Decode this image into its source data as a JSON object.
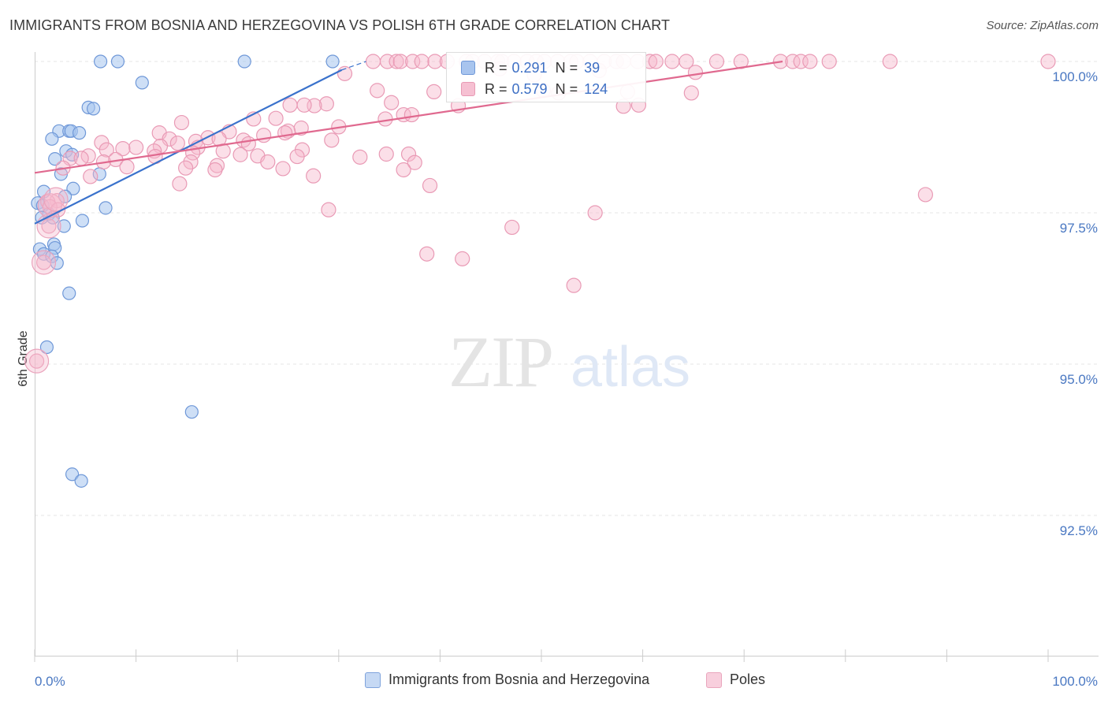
{
  "header": {
    "title": "IMMIGRANTS FROM BOSNIA AND HERZEGOVINA VS POLISH 6TH GRADE CORRELATION CHART",
    "source": "Source: ZipAtlas.com"
  },
  "watermark": {
    "zip": "ZIP",
    "atlas": "atlas"
  },
  "stats": {
    "r_label": "R =",
    "n_label": "N =",
    "rows": [
      {
        "r": "0.291",
        "n": "39",
        "color": "#a8c4ee",
        "border": "#6f98d8"
      },
      {
        "r": "0.579",
        "n": "124",
        "color": "#f6c0d2",
        "border": "#e89ab4"
      }
    ]
  },
  "legend": {
    "items": [
      {
        "label": "Immigrants from Bosnia and Herzegovina",
        "color": "#c6d9f4",
        "border": "#7fa3dc"
      },
      {
        "label": "Poles",
        "color": "#f8cfdd",
        "border": "#e9a6bd"
      }
    ]
  },
  "chart_data": {
    "type": "scatter",
    "title": "IMMIGRANTS FROM BOSNIA AND HERZEGOVINA VS POLISH 6TH GRADE CORRELATION CHART",
    "xlabel": "",
    "ylabel": "6th Grade",
    "xlim": [
      0,
      100
    ],
    "ylim": [
      90.1,
      100.3
    ],
    "x_tick_labels": [
      "0.0%",
      "100.0%"
    ],
    "y_ticks": [
      {
        "value": 100.0,
        "label": "100.0%"
      },
      {
        "value": 97.5,
        "label": "97.5%"
      },
      {
        "value": 95.0,
        "label": "95.0%"
      },
      {
        "value": 92.5,
        "label": "92.5%"
      }
    ],
    "grid": true,
    "legend_position": "bottom",
    "series": [
      {
        "name": "Immigrants from Bosnia and Herzegovina",
        "color": "#7fa8e2",
        "line_color": "#3a72cc",
        "trend": {
          "x": [
            0.0,
            30.3
          ],
          "y": [
            97.32,
            99.86
          ],
          "dash_to": [
            32.7,
            100.0
          ]
        },
        "points": [
          [
            6.5,
            100.0
          ],
          [
            8.2,
            100.0
          ],
          [
            20.7,
            100.0
          ],
          [
            29.4,
            100.0
          ],
          [
            10.6,
            99.65
          ],
          [
            5.3,
            99.24
          ],
          [
            5.8,
            99.22
          ],
          [
            2.4,
            98.85
          ],
          [
            3.4,
            98.85
          ],
          [
            3.6,
            98.85
          ],
          [
            4.4,
            98.82
          ],
          [
            1.7,
            98.72
          ],
          [
            3.1,
            98.52
          ],
          [
            2.0,
            98.39
          ],
          [
            3.7,
            98.46
          ],
          [
            2.6,
            98.14
          ],
          [
            6.4,
            98.14
          ],
          [
            3.8,
            97.9
          ],
          [
            0.9,
            97.85
          ],
          [
            3.0,
            97.77
          ],
          [
            0.3,
            97.66
          ],
          [
            0.8,
            97.62
          ],
          [
            7.0,
            97.58
          ],
          [
            1.4,
            97.48
          ],
          [
            0.7,
            97.42
          ],
          [
            1.8,
            97.42
          ],
          [
            4.7,
            97.37
          ],
          [
            2.9,
            97.28
          ],
          [
            1.9,
            96.98
          ],
          [
            0.5,
            96.9
          ],
          [
            2.0,
            96.92
          ],
          [
            0.9,
            96.82
          ],
          [
            1.7,
            96.78
          ],
          [
            2.2,
            96.67
          ],
          [
            3.4,
            96.17
          ],
          [
            1.2,
            95.28
          ],
          [
            15.5,
            94.21
          ],
          [
            3.7,
            93.18
          ],
          [
            4.6,
            93.07
          ]
        ]
      },
      {
        "name": "Poles",
        "color": "#f2a9c1",
        "line_color": "#e0698f",
        "trend": {
          "x": [
            0.0,
            73.8
          ],
          "y": [
            98.16,
            100.0
          ]
        },
        "points": [
          [
            33.4,
            100.0
          ],
          [
            34.8,
            100.0
          ],
          [
            35.7,
            100.0
          ],
          [
            36.1,
            100.0
          ],
          [
            37.3,
            100.0
          ],
          [
            38.2,
            100.0
          ],
          [
            39.5,
            100.0
          ],
          [
            40.7,
            100.0
          ],
          [
            42.6,
            100.0
          ],
          [
            43.2,
            100.0
          ],
          [
            44.4,
            100.0
          ],
          [
            45.7,
            100.0
          ],
          [
            46.1,
            100.0
          ],
          [
            47.3,
            100.0
          ],
          [
            48.6,
            100.0
          ],
          [
            49.5,
            100.0
          ],
          [
            50.3,
            100.0
          ],
          [
            51.6,
            100.0
          ],
          [
            52.9,
            100.0
          ],
          [
            53.5,
            100.0
          ],
          [
            54.8,
            100.0
          ],
          [
            56.2,
            100.0
          ],
          [
            57.4,
            100.0
          ],
          [
            58.1,
            100.0
          ],
          [
            59.5,
            100.0
          ],
          [
            60.7,
            100.0
          ],
          [
            61.3,
            100.0
          ],
          [
            62.9,
            100.0
          ],
          [
            64.3,
            100.0
          ],
          [
            67.3,
            100.0
          ],
          [
            69.7,
            100.0
          ],
          [
            73.6,
            100.0
          ],
          [
            74.8,
            100.0
          ],
          [
            75.6,
            100.0
          ],
          [
            76.5,
            100.0
          ],
          [
            78.4,
            100.0
          ],
          [
            84.4,
            100.0
          ],
          [
            100.0,
            100.0
          ],
          [
            45.9,
            99.88
          ],
          [
            55.7,
            99.85
          ],
          [
            65.2,
            99.82
          ],
          [
            30.6,
            99.8
          ],
          [
            49.3,
            99.78
          ],
          [
            33.8,
            99.52
          ],
          [
            39.4,
            99.5
          ],
          [
            50.2,
            99.52
          ],
          [
            51.7,
            99.48
          ],
          [
            58.5,
            99.5
          ],
          [
            64.8,
            99.48
          ],
          [
            35.2,
            99.32
          ],
          [
            41.8,
            99.27
          ],
          [
            58.1,
            99.26
          ],
          [
            59.6,
            99.28
          ],
          [
            28.8,
            99.3
          ],
          [
            27.6,
            99.27
          ],
          [
            26.6,
            99.28
          ],
          [
            25.2,
            99.28
          ],
          [
            36.4,
            99.12
          ],
          [
            37.2,
            99.12
          ],
          [
            34.6,
            99.05
          ],
          [
            23.8,
            99.06
          ],
          [
            21.6,
            99.05
          ],
          [
            14.5,
            98.99
          ],
          [
            30.0,
            98.92
          ],
          [
            26.3,
            98.9
          ],
          [
            25.0,
            98.85
          ],
          [
            19.2,
            98.84
          ],
          [
            24.7,
            98.82
          ],
          [
            12.3,
            98.82
          ],
          [
            22.6,
            98.78
          ],
          [
            17.1,
            98.74
          ],
          [
            18.2,
            98.72
          ],
          [
            13.3,
            98.72
          ],
          [
            20.6,
            98.7
          ],
          [
            29.3,
            98.7
          ],
          [
            15.9,
            98.68
          ],
          [
            21.1,
            98.64
          ],
          [
            14.1,
            98.65
          ],
          [
            6.6,
            98.66
          ],
          [
            12.4,
            98.6
          ],
          [
            16.1,
            98.58
          ],
          [
            10.0,
            98.58
          ],
          [
            8.7,
            98.56
          ],
          [
            7.1,
            98.54
          ],
          [
            11.8,
            98.52
          ],
          [
            18.6,
            98.52
          ],
          [
            26.4,
            98.54
          ],
          [
            15.6,
            98.49
          ],
          [
            20.3,
            98.46
          ],
          [
            22.0,
            98.44
          ],
          [
            11.9,
            98.43
          ],
          [
            5.3,
            98.44
          ],
          [
            34.7,
            98.47
          ],
          [
            32.1,
            98.42
          ],
          [
            36.9,
            98.47
          ],
          [
            3.5,
            98.4
          ],
          [
            6.8,
            98.34
          ],
          [
            15.4,
            98.34
          ],
          [
            23.0,
            98.34
          ],
          [
            25.9,
            98.43
          ],
          [
            8.0,
            98.38
          ],
          [
            4.6,
            98.4
          ],
          [
            37.5,
            98.33
          ],
          [
            18.0,
            98.28
          ],
          [
            9.1,
            98.26
          ],
          [
            14.9,
            98.24
          ],
          [
            2.8,
            98.24
          ],
          [
            24.5,
            98.23
          ],
          [
            17.8,
            98.21
          ],
          [
            36.4,
            98.21
          ],
          [
            27.5,
            98.11
          ],
          [
            5.5,
            98.1
          ],
          [
            14.3,
            97.98
          ],
          [
            39.0,
            97.95
          ],
          [
            87.9,
            97.8
          ],
          [
            2.2,
            97.7
          ],
          [
            1.3,
            97.68
          ],
          [
            1.5,
            97.6
          ],
          [
            2.3,
            97.55
          ],
          [
            29.0,
            97.55
          ],
          [
            55.3,
            97.5
          ],
          [
            1.4,
            97.28
          ],
          [
            47.1,
            97.26
          ],
          [
            38.7,
            96.82
          ],
          [
            42.2,
            96.74
          ],
          [
            53.2,
            96.3
          ],
          [
            0.9,
            96.68
          ],
          [
            0.2,
            95.05
          ]
        ],
        "big_points": [
          [
            0.2,
            95.05
          ],
          [
            1.4,
            97.28
          ],
          [
            1.5,
            97.62
          ],
          [
            0.9,
            96.68
          ],
          [
            2.1,
            97.72
          ]
        ]
      }
    ]
  }
}
